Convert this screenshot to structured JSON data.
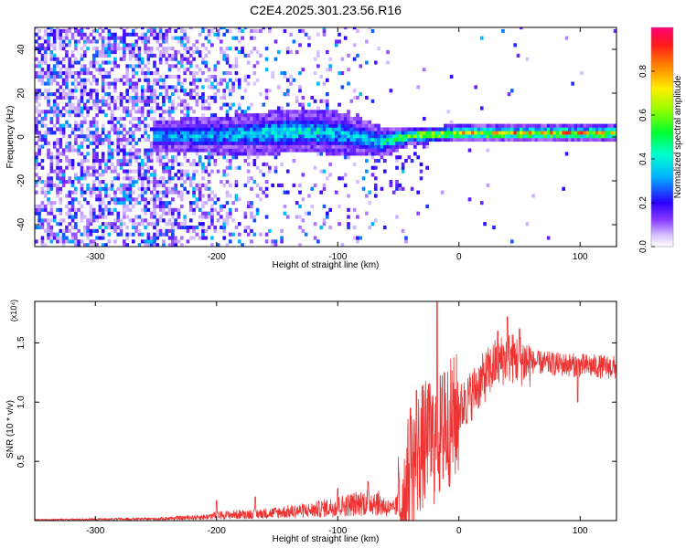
{
  "figure": {
    "title": "C2E4.2025.301.23.56.R16"
  },
  "chart_data": [
    {
      "type": "heatmap",
      "title": "C2E4.2025.301.23.56.R16",
      "xlabel": "Height of straight line (km)",
      "ylabel": "Frequency (Hz)",
      "xlim": [
        -350,
        130
      ],
      "ylim": [
        -50,
        50
      ],
      "x_ticks": [
        "-300",
        "-200",
        "-100",
        "0",
        "100"
      ],
      "y_ticks": [
        "-40",
        "-20",
        "0",
        "20",
        "40"
      ],
      "colorbar": {
        "label": "Normalized spectral amplitude",
        "range": [
          0,
          1
        ],
        "ticks": [
          "0.0",
          "0.2",
          "0.4",
          "0.6",
          "0.8"
        ]
      },
      "signal_track": {
        "x": [
          -250,
          -200,
          -160,
          -130,
          -100,
          -80,
          -65,
          -40,
          0,
          50,
          100,
          130
        ],
        "center_hz": [
          0,
          0,
          1,
          2,
          1,
          -1,
          -3,
          0,
          1,
          1,
          1,
          1
        ],
        "halfwidth_hz": [
          5,
          6,
          7,
          7,
          7,
          6,
          5,
          3,
          2.5,
          2.5,
          2.5,
          2.5
        ],
        "peak_amplitude": [
          0.35,
          0.38,
          0.42,
          0.45,
          0.4,
          0.38,
          0.45,
          0.65,
          0.8,
          0.85,
          0.85,
          0.85
        ]
      },
      "grid": false
    },
    {
      "type": "line",
      "xlabel": "Height of straight line (km)",
      "ylabel": "SNR (10 * v/v)",
      "y_multiplier": "(x10⁴)",
      "xlim": [
        -350,
        130
      ],
      "ylim": [
        0,
        1.85
      ],
      "x_ticks": [
        "-300",
        "-200",
        "-100",
        "0",
        "100"
      ],
      "y_ticks": [
        "0.5",
        "1.0",
        "1.5"
      ],
      "series": [
        {
          "color": "#ee3333",
          "envelope": {
            "x": [
              -350,
              -250,
              -210,
              -200,
              -160,
              -120,
              -90,
              -70,
              -55,
              -45,
              -38,
              -30,
              -20,
              -10,
              0,
              10,
              20,
              30,
              40,
              50,
              60,
              80,
              100,
              130
            ],
            "y": [
              0.01,
              0.02,
              0.04,
              0.06,
              0.08,
              0.12,
              0.18,
              0.22,
              0.12,
              0.25,
              0.55,
              0.68,
              0.72,
              0.85,
              0.95,
              1.08,
              1.22,
              1.34,
              1.4,
              1.38,
              1.35,
              1.33,
              1.32,
              1.3
            ]
          },
          "spikes": [
            {
              "x": -200,
              "y": 0.17
            },
            {
              "x": -168,
              "y": 0.2
            },
            {
              "x": -100,
              "y": 0.27
            },
            {
              "x": -75,
              "y": 0.33
            },
            {
              "x": -40,
              "y": 0.95
            },
            {
              "x": -35,
              "y": 1.1
            },
            {
              "x": -25,
              "y": 1.15
            },
            {
              "x": -18,
              "y": 1.85
            },
            {
              "x": -12,
              "y": 1.25
            },
            {
              "x": 5,
              "y": 1.1
            },
            {
              "x": 32,
              "y": 1.6
            },
            {
              "x": 40,
              "y": 1.72
            },
            {
              "x": 50,
              "y": 1.62
            },
            {
              "x": 98,
              "y": 1.0
            }
          ]
        }
      ],
      "grid": false
    }
  ]
}
